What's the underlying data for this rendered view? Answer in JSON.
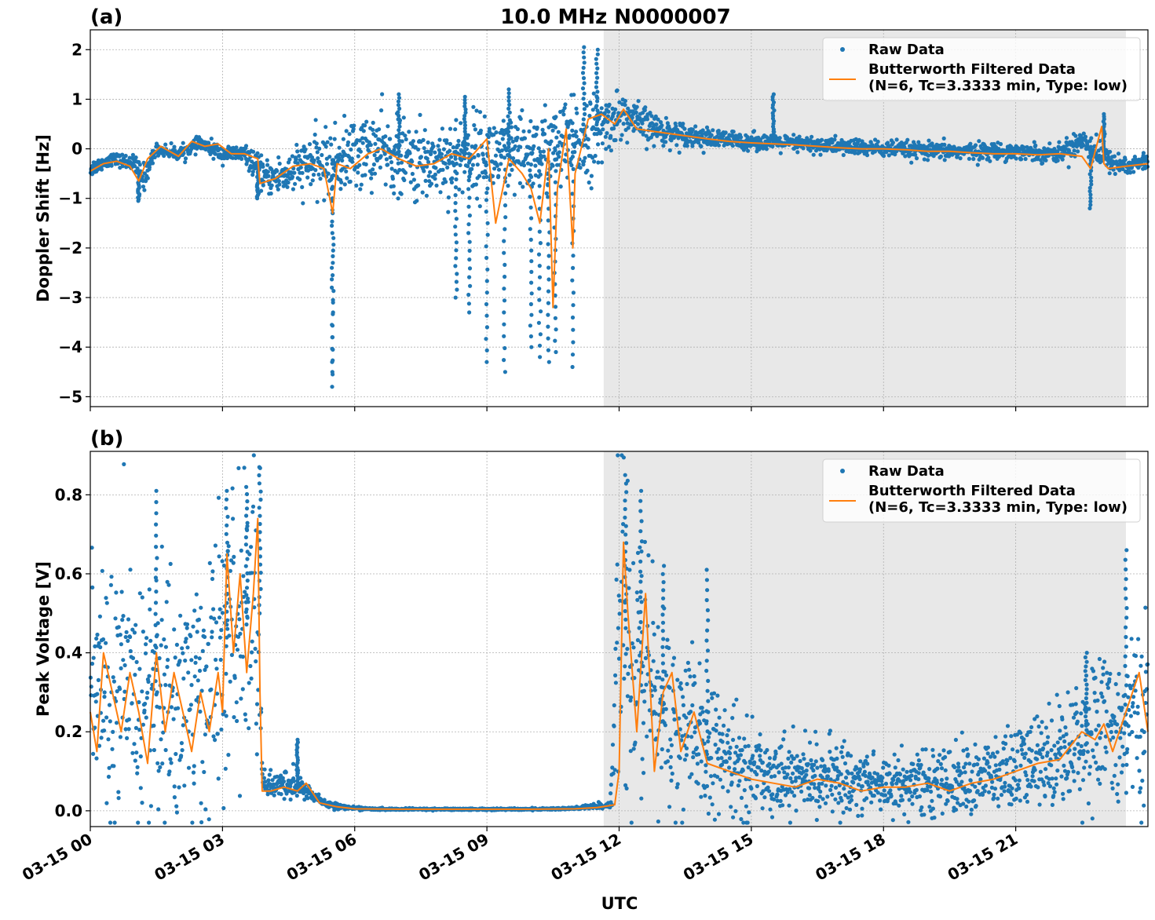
{
  "figure": {
    "title": "10.0 MHz N0000007",
    "xlabel": "UTC"
  },
  "colors": {
    "raw": "#1f77b4",
    "filtered": "#ff7f0e",
    "shade": "#e8e8e8",
    "grid": "#b0b0b0"
  },
  "chart_data": [
    {
      "type": "scatter",
      "panel": "(a)",
      "title": "10.0 MHz N0000007",
      "ylabel": "Doppler Shift [Hz]",
      "xlabel": "",
      "xlim": [
        0,
        24
      ],
      "ylim": [
        -5.2,
        2.4
      ],
      "yticks": [
        2,
        1,
        0,
        -1,
        -2,
        -3,
        -4,
        -5
      ],
      "ytick_labels": [
        "2",
        "1",
        "0",
        "−1",
        "−2",
        "−3",
        "−4",
        "−5"
      ],
      "shaded_region_utc_hours": [
        11.65,
        23.5
      ],
      "grid": true,
      "legend_position": "top-right",
      "series": [
        {
          "name": "Raw Data",
          "kind": "points",
          "x_hours": [
            0.0,
            0.5,
            1.0,
            1.2,
            1.5,
            2.0,
            2.5,
            3.0,
            3.5,
            4.0,
            4.5,
            5.0,
            5.5,
            6.0,
            6.5,
            7.0,
            7.5,
            8.0,
            8.5,
            9.0,
            9.5,
            10.0,
            10.5,
            11.0,
            11.5,
            12.0,
            12.5,
            13.0,
            13.5,
            14.0,
            15.0,
            16.0,
            17.0,
            18.0,
            19.0,
            20.0,
            21.0,
            22.0,
            22.5,
            23.0,
            23.5,
            24.0
          ],
          "center": [
            -0.4,
            -0.2,
            -0.3,
            -0.6,
            0.0,
            -0.1,
            0.1,
            -0.1,
            -0.1,
            -0.6,
            -0.5,
            -0.3,
            -0.3,
            -0.1,
            0.0,
            -0.2,
            -0.3,
            -0.2,
            -0.1,
            -0.1,
            -0.2,
            -0.1,
            0.0,
            0.1,
            0.3,
            0.7,
            0.5,
            0.35,
            0.3,
            0.2,
            0.15,
            0.1,
            0.05,
            0.0,
            -0.05,
            -0.05,
            -0.05,
            -0.1,
            0.2,
            -0.2,
            -0.35,
            -0.25
          ],
          "spread": [
            0.15,
            0.1,
            0.15,
            0.25,
            0.1,
            0.12,
            0.12,
            0.15,
            0.15,
            0.3,
            0.4,
            0.5,
            0.6,
            0.65,
            0.65,
            0.7,
            0.7,
            0.7,
            0.7,
            0.75,
            0.75,
            0.75,
            0.8,
            0.8,
            0.7,
            0.4,
            0.35,
            0.25,
            0.2,
            0.18,
            0.15,
            0.15,
            0.15,
            0.15,
            0.15,
            0.15,
            0.15,
            0.15,
            0.3,
            0.2,
            0.2,
            0.15
          ],
          "spikes": [
            [
              5.5,
              -4.8
            ],
            [
              5.5,
              -4.5
            ],
            [
              8.3,
              -3.0
            ],
            [
              8.6,
              -3.3
            ],
            [
              9.0,
              -4.3
            ],
            [
              9.4,
              -4.5
            ],
            [
              10.0,
              -4.0
            ],
            [
              10.2,
              -4.2
            ],
            [
              10.4,
              -4.3
            ],
            [
              10.55,
              -4.1
            ],
            [
              10.95,
              -4.4
            ],
            [
              7.0,
              1.1
            ],
            [
              8.5,
              1.05
            ],
            [
              9.5,
              1.2
            ],
            [
              11.2,
              2.05
            ],
            [
              11.5,
              2.0
            ],
            [
              15.5,
              1.1
            ],
            [
              23.0,
              0.7
            ],
            [
              22.7,
              -1.2
            ],
            [
              3.8,
              -1.0
            ],
            [
              1.1,
              -1.05
            ]
          ]
        },
        {
          "name": "Butterworth Filtered Data\n(N=6, Tc=3.3333 min, Type: low)",
          "kind": "line",
          "x_hours": [
            0.0,
            0.3,
            0.6,
            0.9,
            1.1,
            1.3,
            1.6,
            2.0,
            2.3,
            2.6,
            2.9,
            3.2,
            3.5,
            3.8,
            3.85,
            4.2,
            4.6,
            5.0,
            5.3,
            5.5,
            5.6,
            5.9,
            6.3,
            6.6,
            7.0,
            7.4,
            7.8,
            8.2,
            8.6,
            9.0,
            9.2,
            9.5,
            9.8,
            10.0,
            10.2,
            10.4,
            10.5,
            10.6,
            10.8,
            10.95,
            11.0,
            11.3,
            11.6,
            11.9,
            12.1,
            12.4,
            12.8,
            13.2,
            13.6,
            14.0,
            14.5,
            15.0,
            15.5,
            16.0,
            16.5,
            17.0,
            17.5,
            18.0,
            18.5,
            19.0,
            19.5,
            20.0,
            20.5,
            21.0,
            21.5,
            22.0,
            22.5,
            22.7,
            22.95,
            23.0,
            23.1,
            23.5,
            24.0
          ],
          "y": [
            -0.45,
            -0.3,
            -0.25,
            -0.35,
            -0.65,
            -0.2,
            0.05,
            -0.15,
            0.15,
            0.05,
            0.1,
            -0.1,
            -0.1,
            -0.2,
            -0.7,
            -0.6,
            -0.35,
            -0.3,
            -0.4,
            -1.3,
            -0.3,
            -0.4,
            -0.1,
            -0.0,
            -0.2,
            -0.35,
            -0.3,
            -0.1,
            -0.2,
            0.2,
            -1.5,
            -0.2,
            -0.5,
            -0.8,
            -1.5,
            0.0,
            -3.2,
            -0.8,
            0.4,
            -2.0,
            -0.5,
            0.6,
            0.7,
            0.5,
            0.8,
            0.4,
            0.35,
            0.3,
            0.25,
            0.2,
            0.15,
            0.12,
            0.1,
            0.08,
            0.05,
            0.02,
            0.0,
            0.0,
            -0.02,
            -0.05,
            -0.05,
            -0.08,
            -0.1,
            -0.1,
            -0.12,
            -0.1,
            -0.15,
            -0.4,
            0.45,
            -0.3,
            -0.4,
            -0.35,
            -0.3
          ]
        }
      ]
    },
    {
      "type": "scatter",
      "panel": "(b)",
      "title": "",
      "ylabel": "Peak Voltage [V]",
      "xlabel": "UTC",
      "xlim": [
        0,
        24
      ],
      "ylim": [
        -0.04,
        0.91
      ],
      "yticks": [
        0.0,
        0.2,
        0.4,
        0.6,
        0.8
      ],
      "ytick_labels": [
        "0.0",
        "0.2",
        "0.4",
        "0.6",
        "0.8"
      ],
      "xticks": [
        0,
        3,
        6,
        9,
        12,
        15,
        18,
        21
      ],
      "xtick_labels": [
        "03-15 00",
        "03-15 03",
        "03-15 06",
        "03-15 09",
        "03-15 12",
        "03-15 15",
        "03-15 18",
        "03-15 21"
      ],
      "shaded_region_utc_hours": [
        11.65,
        23.5
      ],
      "grid": true,
      "legend_position": "top-right",
      "series": [
        {
          "name": "Raw Data",
          "kind": "points",
          "x_hours": [
            0.0,
            0.5,
            1.0,
            1.5,
            2.0,
            2.5,
            3.0,
            3.3,
            3.6,
            3.85,
            3.9,
            4.3,
            4.6,
            4.9,
            5.3,
            5.8,
            6.5,
            8.0,
            10.0,
            11.0,
            11.8,
            12.0,
            12.1,
            12.3,
            12.6,
            13.0,
            13.5,
            14.0,
            15.0,
            16.0,
            17.0,
            18.0,
            19.0,
            20.0,
            21.0,
            22.0,
            22.7,
            23.5,
            24.0
          ],
          "center": [
            0.3,
            0.3,
            0.28,
            0.3,
            0.28,
            0.3,
            0.4,
            0.45,
            0.5,
            0.5,
            0.07,
            0.06,
            0.07,
            0.05,
            0.02,
            0.008,
            0.004,
            0.004,
            0.004,
            0.006,
            0.015,
            0.5,
            0.5,
            0.35,
            0.35,
            0.25,
            0.2,
            0.15,
            0.1,
            0.09,
            0.08,
            0.07,
            0.07,
            0.08,
            0.1,
            0.15,
            0.2,
            0.22,
            0.25
          ],
          "spread": [
            0.25,
            0.3,
            0.3,
            0.3,
            0.3,
            0.3,
            0.3,
            0.3,
            0.35,
            0.35,
            0.03,
            0.03,
            0.04,
            0.02,
            0.01,
            0.004,
            0.002,
            0.002,
            0.002,
            0.003,
            0.01,
            0.35,
            0.35,
            0.3,
            0.3,
            0.25,
            0.18,
            0.15,
            0.1,
            0.08,
            0.08,
            0.07,
            0.07,
            0.08,
            0.1,
            0.12,
            0.15,
            0.18,
            0.2
          ],
          "spikes": [
            [
              3.85,
              0.87
            ],
            [
              3.55,
              0.82
            ],
            [
              3.1,
              0.81
            ],
            [
              1.5,
              0.81
            ],
            [
              12.15,
              0.85
            ],
            [
              12.5,
              0.81
            ],
            [
              13.0,
              0.62
            ],
            [
              14.0,
              0.61
            ],
            [
              23.5,
              0.66
            ],
            [
              4.7,
              0.18
            ],
            [
              22.6,
              0.4
            ]
          ]
        },
        {
          "name": "Butterworth Filtered Data\n(N=6, Tc=3.3333 min, Type: low)",
          "kind": "line",
          "x_hours": [
            0.0,
            0.15,
            0.3,
            0.5,
            0.7,
            0.9,
            1.1,
            1.3,
            1.5,
            1.7,
            1.9,
            2.1,
            2.3,
            2.5,
            2.7,
            2.9,
            3.0,
            3.1,
            3.25,
            3.4,
            3.55,
            3.7,
            3.8,
            3.85,
            3.9,
            4.1,
            4.4,
            4.7,
            4.9,
            5.2,
            5.6,
            6.0,
            7.0,
            8.0,
            9.0,
            10.0,
            11.0,
            11.5,
            11.9,
            12.0,
            12.1,
            12.2,
            12.4,
            12.6,
            12.8,
            13.0,
            13.2,
            13.4,
            13.7,
            14.0,
            14.5,
            15.0,
            15.5,
            16.0,
            16.5,
            17.0,
            17.5,
            18.0,
            18.5,
            19.0,
            19.5,
            20.0,
            20.5,
            21.0,
            21.5,
            22.0,
            22.5,
            22.8,
            23.0,
            23.2,
            23.5,
            23.8,
            24.0
          ],
          "y": [
            0.25,
            0.15,
            0.4,
            0.3,
            0.2,
            0.35,
            0.25,
            0.12,
            0.4,
            0.2,
            0.35,
            0.25,
            0.15,
            0.3,
            0.2,
            0.35,
            0.25,
            0.65,
            0.4,
            0.6,
            0.35,
            0.55,
            0.74,
            0.3,
            0.05,
            0.05,
            0.06,
            0.05,
            0.07,
            0.02,
            0.01,
            0.005,
            0.004,
            0.004,
            0.004,
            0.004,
            0.005,
            0.008,
            0.015,
            0.1,
            0.68,
            0.5,
            0.2,
            0.55,
            0.1,
            0.3,
            0.35,
            0.15,
            0.25,
            0.12,
            0.1,
            0.08,
            0.07,
            0.06,
            0.08,
            0.07,
            0.05,
            0.06,
            0.06,
            0.07,
            0.05,
            0.07,
            0.08,
            0.1,
            0.12,
            0.13,
            0.2,
            0.18,
            0.22,
            0.15,
            0.25,
            0.35,
            0.2
          ]
        }
      ]
    }
  ]
}
